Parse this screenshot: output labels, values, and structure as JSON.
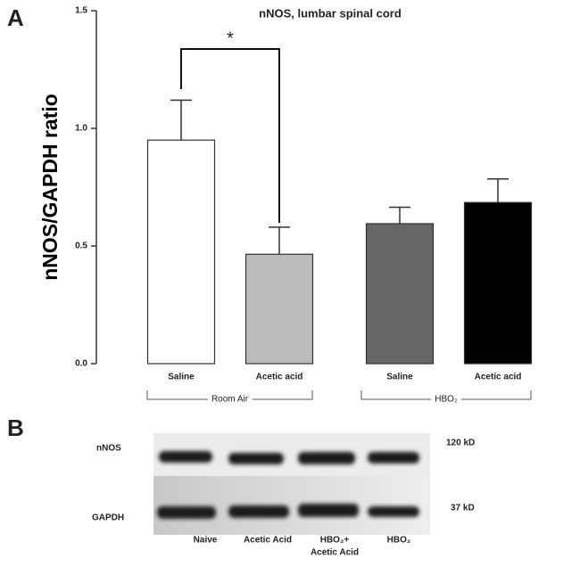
{
  "panel_labels": [
    "A",
    "B"
  ],
  "chart_data": {
    "type": "bar",
    "title": "nNOS, lumbar spinal cord",
    "y_label": "nNOS/GAPDH ratio",
    "categories": [
      "Saline",
      "Acetic acid",
      "Saline",
      "Acetic acid"
    ],
    "values": [
      0.95,
      0.465,
      0.595,
      0.685
    ],
    "errors": [
      0.17,
      0.115,
      0.07,
      0.1
    ],
    "colors": [
      "#ffffff",
      "#bbbbbb",
      "#666666",
      "#000000"
    ],
    "groups": [
      "Room Air",
      "HBO₂"
    ],
    "annotation": "*",
    "ylim": [
      0,
      1.5
    ],
    "yticks": [
      {
        "value": 0,
        "label": "0.0"
      },
      {
        "value": 0.5,
        "label": "0.5"
      },
      {
        "value": 1,
        "label": "1.0"
      },
      {
        "value": 1.5,
        "label": "1.5"
      }
    ]
  },
  "blot": {
    "rows": [
      "nNOS",
      "GAPDH"
    ],
    "sizes": [
      "120 kD",
      "37 kD"
    ],
    "lanes": [
      "Naive",
      "Acetic Acid",
      "HBO₂+",
      "Acetic Acid",
      "HBO₂"
    ]
  }
}
